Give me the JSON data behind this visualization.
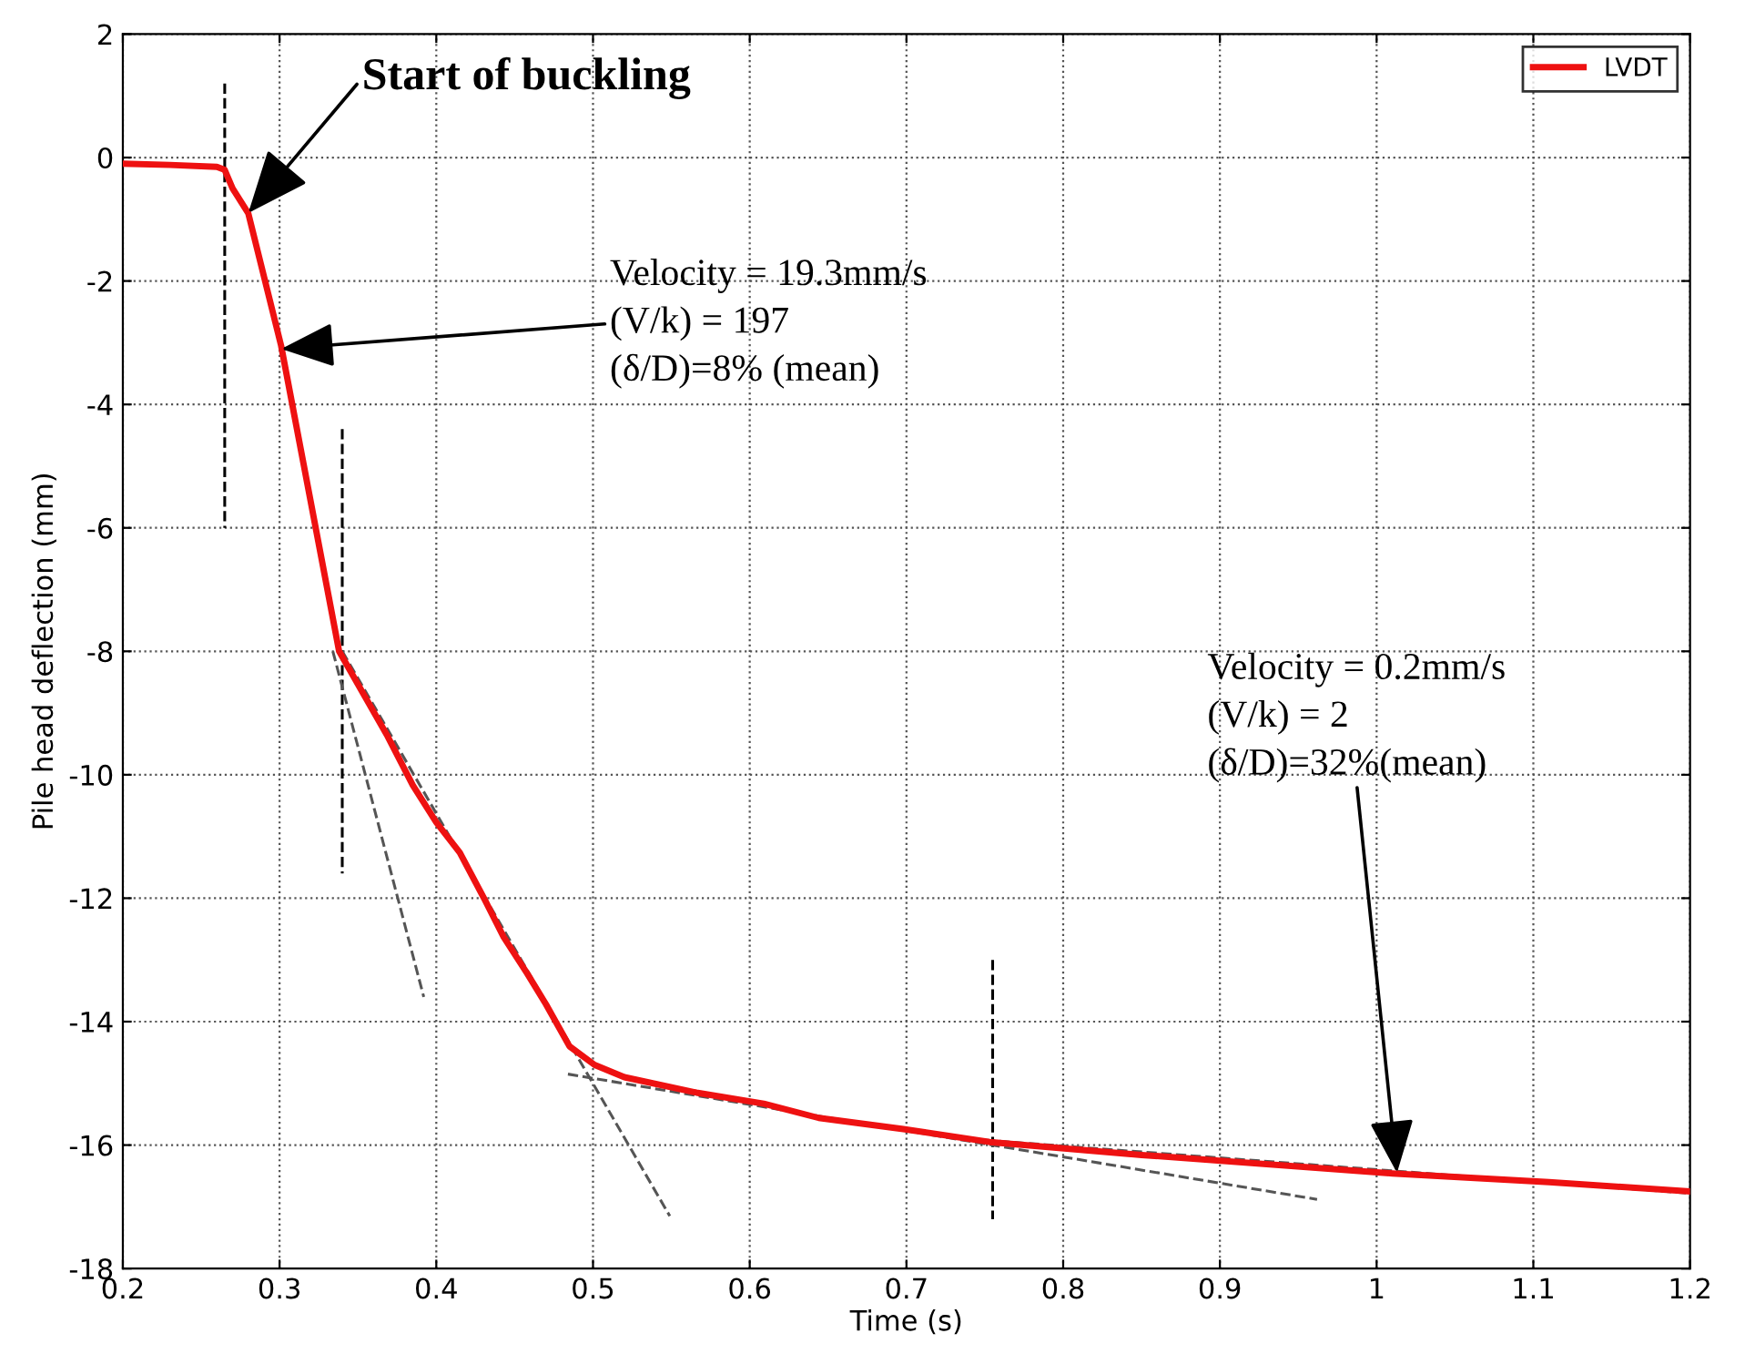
{
  "chart_data": {
    "type": "line",
    "xlabel": "Time (s)",
    "ylabel": "Pile head deflection (mm)",
    "xlim": [
      0.2,
      1.2
    ],
    "xticks": [
      0.2,
      0.3,
      0.4,
      0.5,
      0.6,
      0.7,
      0.8,
      0.9,
      1,
      1.1,
      1.2
    ],
    "ylim": [
      -18,
      2
    ],
    "yticks": [
      2,
      0,
      -2,
      -4,
      -6,
      -8,
      -10,
      -12,
      -14,
      -16,
      -18
    ],
    "grid": true,
    "legend": "top right",
    "marker": "none",
    "series": [
      {
        "name": "LVDT",
        "color": "#ee1111",
        "line_style": "solid",
        "x": [
          0.2,
          0.23,
          0.26,
          0.265,
          0.27,
          0.28,
          0.301,
          0.338,
          0.369,
          0.385,
          0.4,
          0.415,
          0.431,
          0.443,
          0.458,
          0.47,
          0.485,
          0.501,
          0.52,
          0.566,
          0.609,
          0.644,
          0.698,
          0.753,
          0.85,
          1.01,
          1.11,
          1.199
        ],
        "values": [
          -0.1,
          -0.12,
          -0.15,
          -0.2,
          -0.5,
          -0.9,
          -3.05,
          -8.0,
          -9.38,
          -10.17,
          -10.77,
          -11.26,
          -12.03,
          -12.63,
          -13.22,
          -13.72,
          -14.4,
          -14.7,
          -14.9,
          -15.15,
          -15.33,
          -15.56,
          -15.74,
          -15.95,
          -16.16,
          -16.46,
          -16.6,
          -16.75
        ]
      },
      {
        "color": "#000000",
        "line_style": "dashed",
        "x": [
          0.265,
          0.265
        ],
        "values": [
          1.2,
          -6
        ]
      },
      {
        "color": "#000000",
        "line_style": "dashed",
        "x": [
          0.34,
          0.34
        ],
        "values": [
          -4.4,
          -11.6
        ]
      },
      {
        "color": "#000000",
        "line_style": "dashed",
        "x": [
          0.755,
          0.755
        ],
        "values": [
          -13,
          -17.2
        ]
      },
      {
        "color": "#555555",
        "line_style": "dashed",
        "x": [
          0.334,
          0.392
        ],
        "values": [
          -8.0,
          -13.6
        ]
      },
      {
        "color": "#555555",
        "line_style": "dashed",
        "x": [
          0.34,
          0.549
        ],
        "values": [
          -8.0,
          -17.15
        ]
      },
      {
        "color": "#555555",
        "line_style": "dashed",
        "x": [
          0.484,
          0.962
        ],
        "values": [
          -14.85,
          -16.88
        ]
      },
      {
        "color": "#555555",
        "line_style": "dashed",
        "x": [
          0.75,
          1.2
        ],
        "values": [
          -15.92,
          -16.78
        ]
      }
    ],
    "annotations": [
      {
        "text": "Start of buckling",
        "x": 0.28,
        "y": -0.9
      },
      {
        "text": "Velocity = 19.3mm/s\n(V/k) = 197\n(δ/D)=8% (mean)",
        "x": 0.301,
        "y": -3.1
      },
      {
        "text": "Velocity = 0.2mm/s\n(V/k) = 2\n(δ/D)=32%(mean)",
        "x": 1.013,
        "y": -16.45
      }
    ]
  }
}
